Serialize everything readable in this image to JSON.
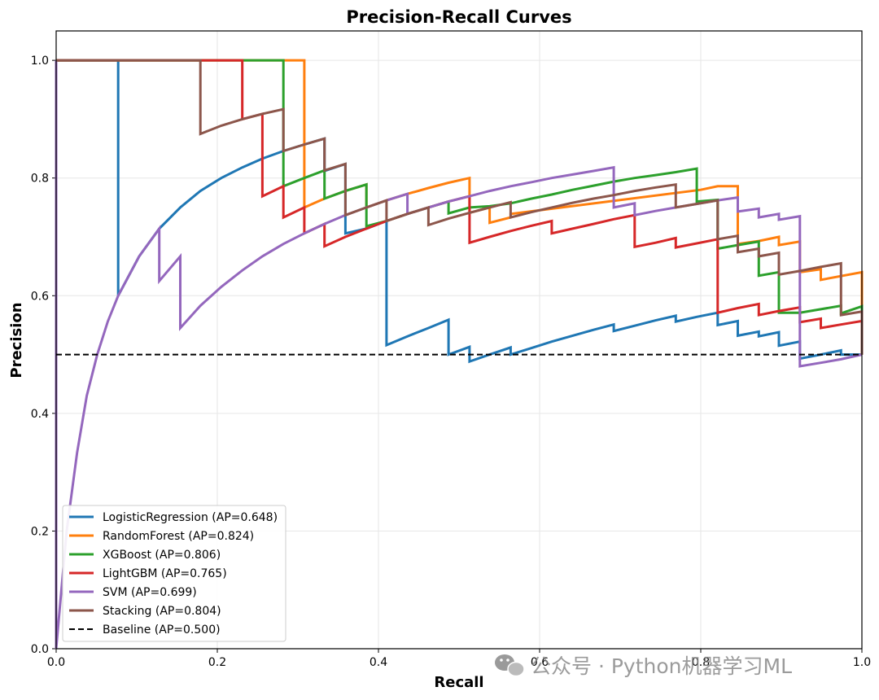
{
  "chart_data": {
    "type": "line",
    "title": "Precision-Recall Curves",
    "xlabel": "Recall",
    "ylabel": "Precision",
    "xlim": [
      0.0,
      1.0
    ],
    "ylim": [
      0.0,
      1.05
    ],
    "xticks": [
      "0.0",
      "0.2",
      "0.4",
      "0.6",
      "0.8",
      "1.0"
    ],
    "yticks": [
      "0.0",
      "0.2",
      "0.4",
      "0.6",
      "0.8",
      "1.0"
    ],
    "grid": true,
    "legend_position": "lower-left",
    "series": [
      {
        "name": "LogisticRegression (AP=0.648)",
        "color": "#1f77b4",
        "points": [
          [
            0,
            1.0
          ],
          [
            0.077,
            1.0
          ],
          [
            0.077,
            0.6
          ],
          [
            0.103,
            0.667
          ],
          [
            0.128,
            0.714
          ],
          [
            0.154,
            0.75
          ],
          [
            0.179,
            0.778
          ],
          [
            0.205,
            0.8
          ],
          [
            0.231,
            0.818
          ],
          [
            0.256,
            0.833
          ],
          [
            0.282,
            0.846
          ],
          [
            0.308,
            0.857
          ],
          [
            0.333,
            0.867
          ],
          [
            0.333,
            0.812
          ],
          [
            0.359,
            0.824
          ],
          [
            0.359,
            0.706
          ],
          [
            0.385,
            0.714
          ],
          [
            0.41,
            0.727
          ],
          [
            0.41,
            0.516
          ],
          [
            0.436,
            0.531
          ],
          [
            0.462,
            0.545
          ],
          [
            0.487,
            0.559
          ],
          [
            0.487,
            0.5
          ],
          [
            0.513,
            0.513
          ],
          [
            0.513,
            0.488
          ],
          [
            0.538,
            0.5
          ],
          [
            0.564,
            0.512
          ],
          [
            0.564,
            0.5
          ],
          [
            0.59,
            0.511
          ],
          [
            0.615,
            0.522
          ],
          [
            0.641,
            0.532
          ],
          [
            0.667,
            0.542
          ],
          [
            0.692,
            0.551
          ],
          [
            0.692,
            0.54
          ],
          [
            0.718,
            0.549
          ],
          [
            0.744,
            0.558
          ],
          [
            0.769,
            0.566
          ],
          [
            0.769,
            0.556
          ],
          [
            0.795,
            0.564
          ],
          [
            0.821,
            0.571
          ],
          [
            0.821,
            0.55
          ],
          [
            0.846,
            0.557
          ],
          [
            0.846,
            0.532
          ],
          [
            0.872,
            0.539
          ],
          [
            0.872,
            0.531
          ],
          [
            0.897,
            0.538
          ],
          [
            0.897,
            0.515
          ],
          [
            0.923,
            0.522
          ],
          [
            0.923,
            0.493
          ],
          [
            0.949,
            0.5
          ],
          [
            0.974,
            0.507
          ],
          [
            0.974,
            0.5
          ],
          [
            1.0,
            0.5
          ]
        ]
      },
      {
        "name": "RandomForest (AP=0.824)",
        "color": "#ff7f0e",
        "points": [
          [
            0,
            1.0
          ],
          [
            0.308,
            1.0
          ],
          [
            0.308,
            0.75
          ],
          [
            0.333,
            0.765
          ],
          [
            0.359,
            0.778
          ],
          [
            0.385,
            0.789
          ],
          [
            0.385,
            0.75
          ],
          [
            0.41,
            0.762
          ],
          [
            0.436,
            0.773
          ],
          [
            0.462,
            0.783
          ],
          [
            0.487,
            0.792
          ],
          [
            0.513,
            0.8
          ],
          [
            0.513,
            0.741
          ],
          [
            0.538,
            0.75
          ],
          [
            0.538,
            0.724
          ],
          [
            0.564,
            0.733
          ],
          [
            0.564,
            0.739
          ],
          [
            0.8,
            0.78
          ],
          [
            0.821,
            0.786
          ],
          [
            0.846,
            0.786
          ],
          [
            0.846,
            0.688
          ],
          [
            0.872,
            0.693
          ],
          [
            0.897,
            0.7
          ],
          [
            0.897,
            0.686
          ],
          [
            0.923,
            0.692
          ],
          [
            0.923,
            0.64
          ],
          [
            0.949,
            0.645
          ],
          [
            0.949,
            0.627
          ],
          [
            1.0,
            0.64
          ],
          [
            1.0,
            0.5
          ]
        ]
      },
      {
        "name": "XGBoost (AP=0.806)",
        "color": "#2ca02c",
        "points": [
          [
            0,
            1.0
          ],
          [
            0.282,
            1.0
          ],
          [
            0.282,
            0.846
          ],
          [
            0.282,
            0.786
          ],
          [
            0.308,
            0.8
          ],
          [
            0.333,
            0.813
          ],
          [
            0.333,
            0.765
          ],
          [
            0.359,
            0.778
          ],
          [
            0.385,
            0.789
          ],
          [
            0.385,
            0.718
          ],
          [
            0.41,
            0.727
          ],
          [
            0.436,
            0.739
          ],
          [
            0.462,
            0.75
          ],
          [
            0.487,
            0.76
          ],
          [
            0.487,
            0.74
          ],
          [
            0.513,
            0.75
          ],
          [
            0.538,
            0.752
          ],
          [
            0.564,
            0.757
          ],
          [
            0.59,
            0.765
          ],
          [
            0.615,
            0.772
          ],
          [
            0.641,
            0.78
          ],
          [
            0.667,
            0.787
          ],
          [
            0.692,
            0.794
          ],
          [
            0.718,
            0.8
          ],
          [
            0.744,
            0.805
          ],
          [
            0.769,
            0.81
          ],
          [
            0.795,
            0.816
          ],
          [
            0.795,
            0.76
          ],
          [
            0.821,
            0.763
          ],
          [
            0.821,
            0.68
          ],
          [
            0.846,
            0.686
          ],
          [
            0.872,
            0.692
          ],
          [
            0.872,
            0.634
          ],
          [
            0.897,
            0.64
          ],
          [
            0.897,
            0.571
          ],
          [
            0.923,
            0.571
          ],
          [
            0.949,
            0.577
          ],
          [
            0.974,
            0.583
          ],
          [
            0.974,
            0.57
          ],
          [
            1.0,
            0.582
          ],
          [
            1.0,
            0.5
          ]
        ]
      },
      {
        "name": "LightGBM (AP=0.765)",
        "color": "#d62728",
        "points": [
          [
            0,
            1.0
          ],
          [
            0.231,
            1.0
          ],
          [
            0.231,
            0.9
          ],
          [
            0.256,
            0.909
          ],
          [
            0.256,
            0.769
          ],
          [
            0.282,
            0.786
          ],
          [
            0.282,
            0.733
          ],
          [
            0.308,
            0.75
          ],
          [
            0.308,
            0.706
          ],
          [
            0.333,
            0.722
          ],
          [
            0.333,
            0.684
          ],
          [
            0.359,
            0.7
          ],
          [
            0.385,
            0.714
          ],
          [
            0.41,
            0.727
          ],
          [
            0.436,
            0.739
          ],
          [
            0.462,
            0.75
          ],
          [
            0.487,
            0.76
          ],
          [
            0.513,
            0.769
          ],
          [
            0.513,
            0.69
          ],
          [
            0.538,
            0.7
          ],
          [
            0.564,
            0.71
          ],
          [
            0.59,
            0.719
          ],
          [
            0.615,
            0.727
          ],
          [
            0.615,
            0.706
          ],
          [
            0.641,
            0.714
          ],
          [
            0.667,
            0.722
          ],
          [
            0.692,
            0.73
          ],
          [
            0.718,
            0.737
          ],
          [
            0.718,
            0.683
          ],
          [
            0.744,
            0.69
          ],
          [
            0.769,
            0.698
          ],
          [
            0.769,
            0.682
          ],
          [
            0.795,
            0.689
          ],
          [
            0.821,
            0.696
          ],
          [
            0.821,
            0.571
          ],
          [
            0.846,
            0.579
          ],
          [
            0.872,
            0.586
          ],
          [
            0.872,
            0.567
          ],
          [
            0.897,
            0.574
          ],
          [
            0.923,
            0.58
          ],
          [
            0.923,
            0.555
          ],
          [
            0.949,
            0.561
          ],
          [
            0.949,
            0.545
          ],
          [
            0.974,
            0.551
          ],
          [
            1.0,
            0.557
          ],
          [
            1.0,
            0.5
          ]
        ]
      },
      {
        "name": "SVM (AP=0.699)",
        "color": "#9467bd",
        "points": [
          [
            0,
            0.0
          ],
          [
            0.0,
            1.0
          ],
          [
            0.0,
            0.0
          ],
          [
            0.013,
            0.2
          ],
          [
            0.026,
            0.333
          ],
          [
            0.038,
            0.43
          ],
          [
            0.051,
            0.5
          ],
          [
            0.064,
            0.556
          ],
          [
            0.077,
            0.6
          ],
          [
            0.103,
            0.667
          ],
          [
            0.128,
            0.714
          ],
          [
            0.128,
            0.625
          ],
          [
            0.154,
            0.667
          ],
          [
            0.154,
            0.545
          ],
          [
            0.179,
            0.583
          ],
          [
            0.205,
            0.615
          ],
          [
            0.231,
            0.643
          ],
          [
            0.256,
            0.667
          ],
          [
            0.282,
            0.688
          ],
          [
            0.308,
            0.706
          ],
          [
            0.333,
            0.722
          ],
          [
            0.359,
            0.737
          ],
          [
            0.385,
            0.75
          ],
          [
            0.41,
            0.762
          ],
          [
            0.436,
            0.773
          ],
          [
            0.436,
            0.739
          ],
          [
            0.462,
            0.75
          ],
          [
            0.487,
            0.76
          ],
          [
            0.513,
            0.769
          ],
          [
            0.538,
            0.778
          ],
          [
            0.564,
            0.786
          ],
          [
            0.59,
            0.793
          ],
          [
            0.615,
            0.8
          ],
          [
            0.641,
            0.806
          ],
          [
            0.667,
            0.812
          ],
          [
            0.692,
            0.818
          ],
          [
            0.692,
            0.75
          ],
          [
            0.718,
            0.757
          ],
          [
            0.718,
            0.737
          ],
          [
            0.744,
            0.744
          ],
          [
            0.769,
            0.75
          ],
          [
            0.795,
            0.756
          ],
          [
            0.821,
            0.762
          ],
          [
            0.846,
            0.767
          ],
          [
            0.846,
            0.743
          ],
          [
            0.872,
            0.748
          ],
          [
            0.872,
            0.733
          ],
          [
            0.897,
            0.739
          ],
          [
            0.897,
            0.729
          ],
          [
            0.923,
            0.735
          ],
          [
            0.923,
            0.48
          ],
          [
            0.949,
            0.486
          ],
          [
            0.974,
            0.492
          ],
          [
            1.0,
            0.5
          ]
        ]
      },
      {
        "name": "Stacking (AP=0.804)",
        "color": "#8c564b",
        "points": [
          [
            0,
            1.0
          ],
          [
            0.179,
            1.0
          ],
          [
            0.179,
            0.875
          ],
          [
            0.205,
            0.889
          ],
          [
            0.231,
            0.9
          ],
          [
            0.256,
            0.909
          ],
          [
            0.282,
            0.917
          ],
          [
            0.282,
            0.846
          ],
          [
            0.308,
            0.857
          ],
          [
            0.333,
            0.867
          ],
          [
            0.333,
            0.813
          ],
          [
            0.359,
            0.824
          ],
          [
            0.359,
            0.737
          ],
          [
            0.385,
            0.75
          ],
          [
            0.41,
            0.762
          ],
          [
            0.41,
            0.727
          ],
          [
            0.436,
            0.739
          ],
          [
            0.462,
            0.75
          ],
          [
            0.462,
            0.72
          ],
          [
            0.487,
            0.731
          ],
          [
            0.513,
            0.741
          ],
          [
            0.538,
            0.75
          ],
          [
            0.564,
            0.759
          ],
          [
            0.564,
            0.733
          ],
          [
            0.59,
            0.742
          ],
          [
            0.615,
            0.75
          ],
          [
            0.641,
            0.758
          ],
          [
            0.667,
            0.765
          ],
          [
            0.692,
            0.771
          ],
          [
            0.718,
            0.778
          ],
          [
            0.744,
            0.784
          ],
          [
            0.769,
            0.789
          ],
          [
            0.769,
            0.75
          ],
          [
            0.795,
            0.756
          ],
          [
            0.821,
            0.762
          ],
          [
            0.821,
            0.742
          ],
          [
            0.821,
            0.696
          ],
          [
            0.846,
            0.702
          ],
          [
            0.846,
            0.674
          ],
          [
            0.872,
            0.68
          ],
          [
            0.872,
            0.667
          ],
          [
            0.897,
            0.673
          ],
          [
            0.897,
            0.636
          ],
          [
            0.923,
            0.642
          ],
          [
            0.949,
            0.649
          ],
          [
            0.974,
            0.655
          ],
          [
            0.974,
            0.567
          ],
          [
            1.0,
            0.573
          ],
          [
            1.0,
            0.5
          ]
        ]
      },
      {
        "name": "Baseline (AP=0.500)",
        "color": "#000000",
        "dashed": true,
        "points": [
          [
            0,
            0.5
          ],
          [
            1.0,
            0.5
          ]
        ]
      }
    ]
  },
  "watermark": {
    "icon": "wechat-icon",
    "text": "公众号 · Python机器学习ML"
  }
}
